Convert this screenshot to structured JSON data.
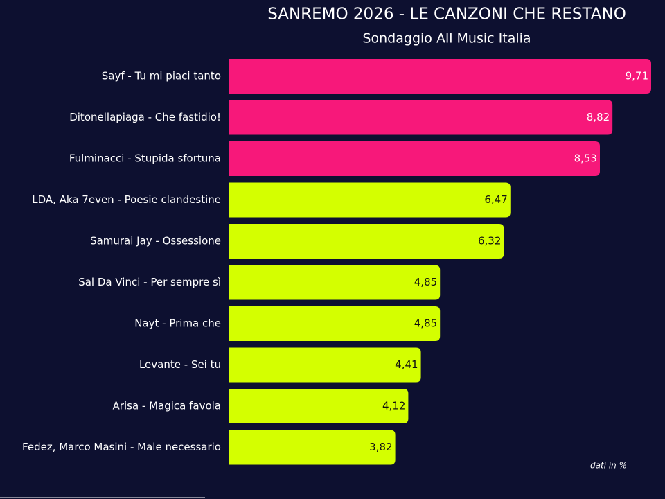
{
  "chart_data": {
    "type": "bar",
    "orientation": "horizontal",
    "title": "SANREMO 2026 - LE CANZONI CHE RESTANO",
    "subtitle": "Sondaggio All Music Italia",
    "categories": [
      "Sayf - Tu mi piaci tanto",
      "Ditonellapiaga - Che fastidio!",
      "Fulminacci - Stupida sfortuna",
      "LDA, Aka 7even - Poesie clandestine",
      "Samurai Jay - Ossessione",
      "Sal Da Vinci - Per sempre sì",
      "Nayt - Prima che",
      "Levante - Sei tu",
      "Arisa - Magica favola",
      "Fedez, Marco Masini - Male necessario"
    ],
    "values": [
      9.71,
      8.82,
      8.53,
      6.47,
      6.32,
      4.85,
      4.85,
      4.41,
      4.12,
      3.82
    ],
    "value_labels": [
      "9,71",
      "8,82",
      "8,53",
      "6,47",
      "6,32",
      "4,85",
      "4,85",
      "4,41",
      "4,12",
      "3,82"
    ],
    "colors": [
      "#f7187a",
      "#f7187a",
      "#f7187a",
      "#d4ff00",
      "#d4ff00",
      "#d4ff00",
      "#d4ff00",
      "#d4ff00",
      "#d4ff00",
      "#d4ff00"
    ],
    "note": "dati in %"
  }
}
